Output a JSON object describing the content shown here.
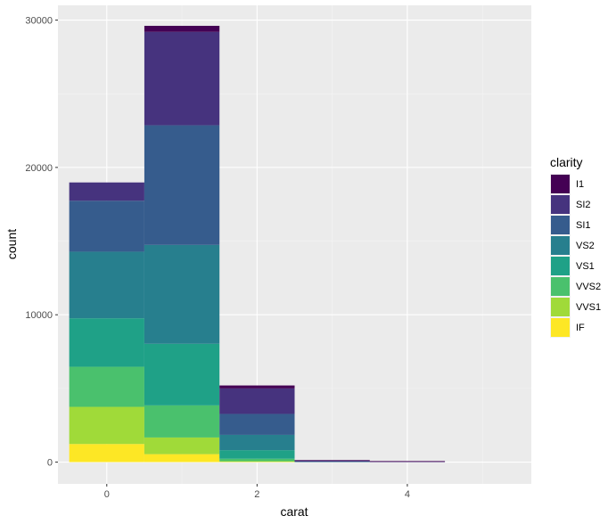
{
  "chart_data": {
    "type": "bar",
    "stacked": true,
    "xlabel": "carat",
    "ylabel": "count",
    "xlim": [
      -0.65,
      5.65
    ],
    "ylim": [
      -1480,
      31000
    ],
    "x_ticks": [
      0,
      2,
      4
    ],
    "x_tick_labels": [
      "0",
      "2",
      "4"
    ],
    "y_ticks": [
      0,
      10000,
      20000,
      30000
    ],
    "y_tick_labels": [
      "0",
      "10000",
      "20000",
      "30000"
    ],
    "bin_width": 1,
    "bin_centers": [
      0,
      1,
      2,
      3,
      4,
      5
    ],
    "grid": true,
    "legend": {
      "title": "clarity",
      "position": "right"
    },
    "series": [
      {
        "name": "IF",
        "color": "#FDE725",
        "values": [
          1230,
          540,
          20,
          0,
          0,
          0
        ]
      },
      {
        "name": "VVS1",
        "color": "#A0DA39",
        "values": [
          2520,
          1130,
          40,
          0,
          0,
          0
        ]
      },
      {
        "name": "VVS2",
        "color": "#4AC16D",
        "values": [
          2720,
          2180,
          170,
          0,
          0,
          0
        ]
      },
      {
        "name": "VS1",
        "color": "#1FA187",
        "values": [
          3290,
          4180,
          580,
          5,
          0,
          0
        ]
      },
      {
        "name": "VS2",
        "color": "#277F8E",
        "values": [
          4520,
          6710,
          1040,
          10,
          0,
          0
        ]
      },
      {
        "name": "SI1",
        "color": "#365C8D",
        "values": [
          3460,
          8120,
          1420,
          30,
          0,
          0
        ]
      },
      {
        "name": "SI2",
        "color": "#46337E",
        "values": [
          1240,
          6340,
          1730,
          40,
          20,
          0
        ]
      },
      {
        "name": "I1",
        "color": "#440154",
        "values": [
          0,
          410,
          200,
          20,
          5,
          0
        ]
      }
    ]
  }
}
